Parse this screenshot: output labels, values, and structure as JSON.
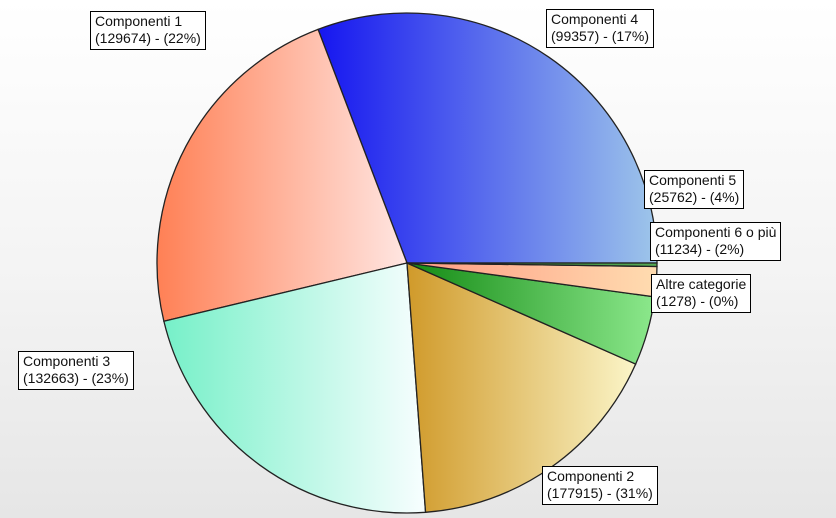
{
  "chart_data": {
    "type": "pie",
    "start_angle_deg": 0,
    "direction": "counterclockwise",
    "slices": [
      {
        "name": "Componenti 2",
        "value": 177915,
        "percent": "31%",
        "color_dark": "#1616f0",
        "color_light": "#9ec6ea",
        "shade": "left"
      },
      {
        "name": "Componenti 3",
        "value": 132663,
        "percent": "23%",
        "color_dark": "#ff8055",
        "color_light": "#ffe6e2",
        "shade": "left"
      },
      {
        "name": "Componenti 1",
        "value": 129674,
        "percent": "22%",
        "color_dark": "#76f0c8",
        "color_light": "#f8feff",
        "shade": "left"
      },
      {
        "name": "Componenti 4",
        "value": 99357,
        "percent": "17%",
        "color_dark": "#d09a2a",
        "color_light": "#fbf5c8",
        "shade": "left"
      },
      {
        "name": "Componenti 5",
        "value": 25762,
        "percent": "4%",
        "color_dark": "#138a13",
        "color_light": "#8ce88c",
        "shade": "left"
      },
      {
        "name": "Componenti 6 o più",
        "value": 11234,
        "percent": "2%",
        "color_dark": "#ff9a82",
        "color_light": "#ffdcb0",
        "shade": "left"
      },
      {
        "name": "Altre categorie",
        "value": 1278,
        "percent": "0%",
        "color_dark": "#2a7a2a",
        "color_light": "#55aa55",
        "shade": "left"
      }
    ],
    "labels": [
      {
        "name": "Componenti 1",
        "line2": "(129674) - (22%)"
      },
      {
        "name": "Componenti 4",
        "line2": "(99357) - (17%)"
      },
      {
        "name": "Componenti 5",
        "line2": "(25762) - (4%)"
      },
      {
        "name": "Componenti 6 o più",
        "line2": "(11234) - (2%)"
      },
      {
        "name": "Altre categorie",
        "line2": "(1278) - (0%)"
      },
      {
        "name": "Componenti 3",
        "line2": "(132663) - (23%)"
      },
      {
        "name": "Componenti 2",
        "line2": "(177915) - (31%)"
      }
    ]
  }
}
